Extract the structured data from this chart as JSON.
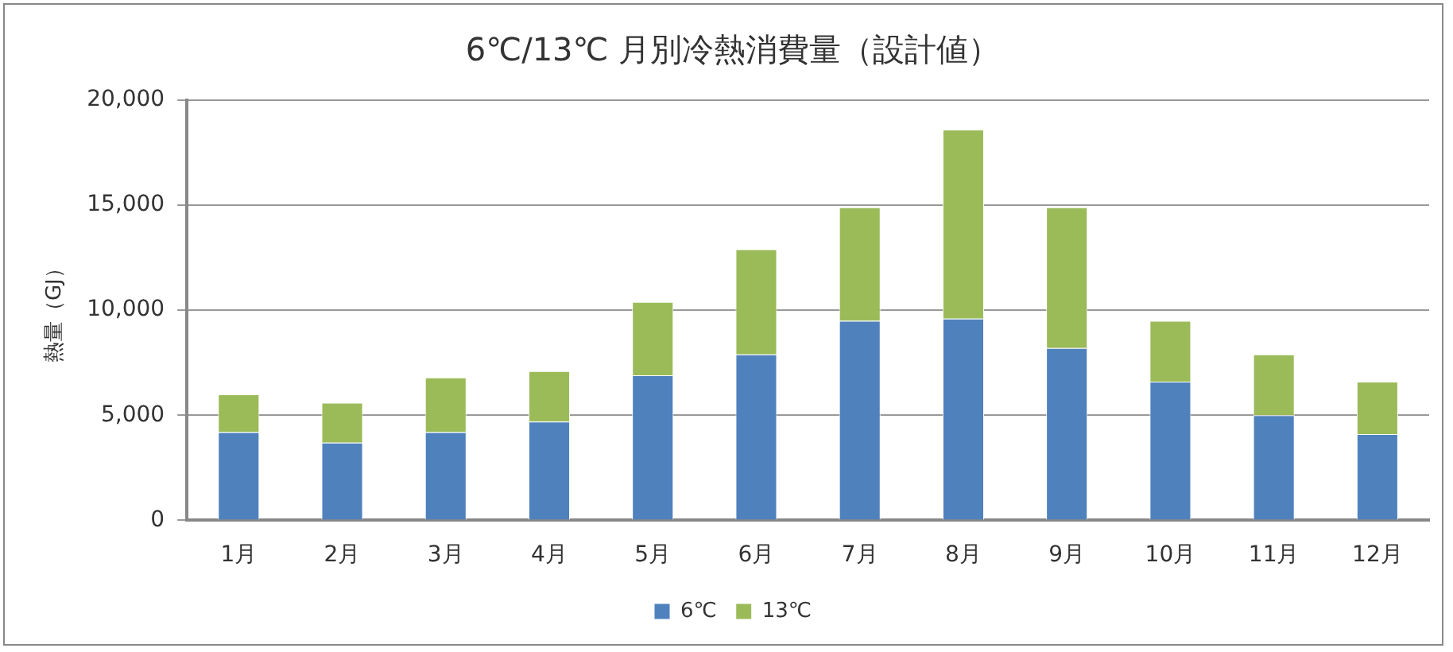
{
  "chart_data": {
    "type": "bar",
    "title": "6℃/13℃ 月別冷熱消費量（設計値）",
    "ylabel": "熱量（GJ）",
    "categories": [
      "1月",
      "2月",
      "3月",
      "4月",
      "5月",
      "6月",
      "7月",
      "8月",
      "9月",
      "10月",
      "11月",
      "12月"
    ],
    "series": [
      {
        "name": "6℃",
        "color": "#4f81bd",
        "values": [
          4200,
          3700,
          4200,
          4700,
          6900,
          7900,
          9500,
          9600,
          8200,
          6600,
          5000,
          4100
        ]
      },
      {
        "name": "13℃",
        "color": "#9bbb59",
        "values": [
          1800,
          1900,
          2600,
          2400,
          3500,
          5000,
          5400,
          9000,
          6700,
          2900,
          2900,
          2500
        ]
      }
    ],
    "stacked": true,
    "ylim": [
      0,
      20000
    ],
    "yticks": [
      {
        "value": 0,
        "label": "0"
      },
      {
        "value": 5000,
        "label": "5,000"
      },
      {
        "value": 10000,
        "label": "10,000"
      },
      {
        "value": 15000,
        "label": "15,000"
      },
      {
        "value": 20000,
        "label": "20,000"
      }
    ],
    "grid": "y",
    "legend": "bottom"
  }
}
